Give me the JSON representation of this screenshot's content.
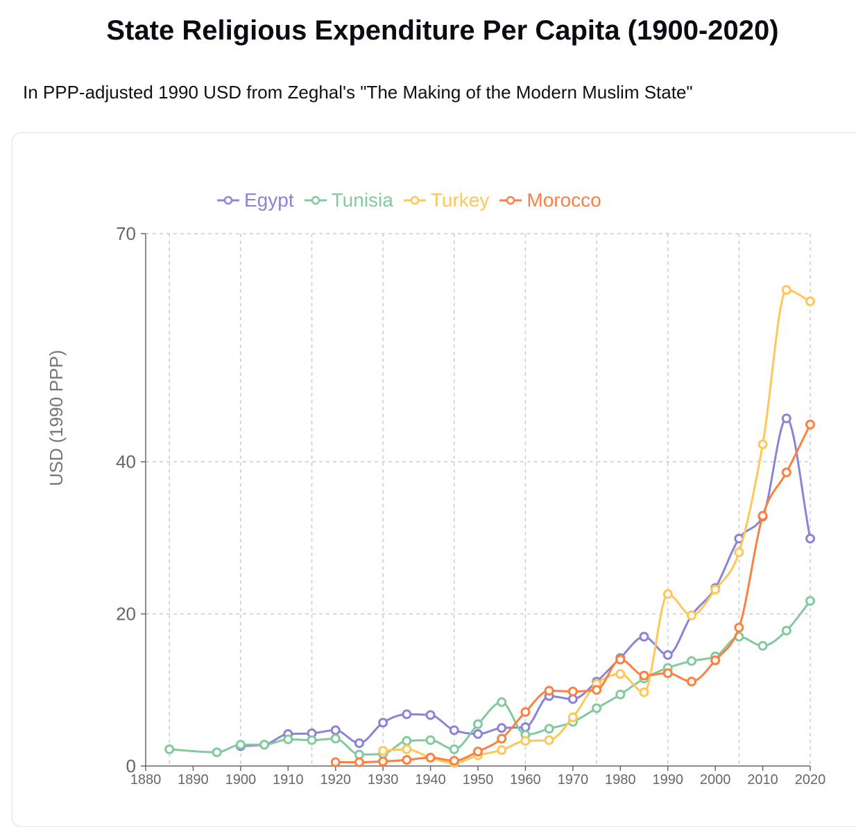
{
  "header": {
    "title": "State Religious Expenditure Per Capita (1900-2020)",
    "subtitle": "In PPP-adjusted 1990 USD from Zeghal's \"The Making of the Modern Muslim State\""
  },
  "chart_data": {
    "type": "line",
    "ylabel": "USD (1990 PPP)",
    "xlabel": "",
    "xlim": [
      1880,
      2020
    ],
    "ylim": [
      0,
      70
    ],
    "xticks": [
      1880,
      1890,
      1900,
      1910,
      1920,
      1930,
      1940,
      1950,
      1960,
      1970,
      1980,
      1990,
      2000,
      2010,
      2020
    ],
    "yticks": [
      0,
      20,
      40,
      70
    ],
    "grid": true,
    "legend_position": "top",
    "series": [
      {
        "name": "Egypt",
        "color": "#8884d8",
        "x": [
          1900,
          1905,
          1910,
          1915,
          1920,
          1925,
          1930,
          1935,
          1940,
          1945,
          1950,
          1955,
          1960,
          1965,
          1970,
          1975,
          1980,
          1985,
          1990,
          1995,
          2000,
          2005,
          2010,
          2015,
          2020
        ],
        "values": [
          2.6,
          2.8,
          4.2,
          4.3,
          4.7,
          3.0,
          5.7,
          6.8,
          6.7,
          4.7,
          4.2,
          5.0,
          5.1,
          9.2,
          8.8,
          11.1,
          14.2,
          17.0,
          14.6,
          19.8,
          23.4,
          29.9,
          32.8,
          45.7,
          29.9
        ]
      },
      {
        "name": "Tunisia",
        "color": "#82ca9d",
        "x": [
          1885,
          1895,
          1900,
          1905,
          1910,
          1915,
          1920,
          1925,
          1930,
          1935,
          1940,
          1945,
          1950,
          1955,
          1960,
          1965,
          1970,
          1975,
          1980,
          1985,
          1990,
          1995,
          2000,
          2005,
          2010,
          2015,
          2020
        ],
        "values": [
          2.2,
          1.8,
          2.8,
          2.8,
          3.5,
          3.4,
          3.6,
          1.5,
          1.6,
          3.3,
          3.4,
          2.2,
          5.5,
          8.4,
          4.1,
          4.9,
          5.8,
          7.6,
          9.4,
          11.5,
          12.9,
          13.8,
          14.4,
          17.0,
          15.8,
          17.8,
          21.7
        ]
      },
      {
        "name": "Turkey",
        "color": "#ffc658",
        "x": [
          1930,
          1935,
          1940,
          1945,
          1950,
          1955,
          1960,
          1965,
          1970,
          1975,
          1980,
          1985,
          1990,
          1995,
          2000,
          2005,
          2010,
          2015,
          2020
        ],
        "values": [
          2.0,
          2.2,
          1.1,
          0.4,
          1.4,
          2.1,
          3.3,
          3.4,
          6.4,
          10.8,
          12.1,
          9.7,
          22.6,
          19.8,
          23.2,
          28.1,
          42.3,
          62.6,
          61.1
        ]
      },
      {
        "name": "Morocco",
        "color": "#ff7f3f",
        "x": [
          1920,
          1925,
          1930,
          1935,
          1940,
          1945,
          1950,
          1955,
          1960,
          1965,
          1970,
          1975,
          1980,
          1985,
          1990,
          1995,
          2000,
          2005,
          2010,
          2015,
          2020
        ],
        "values": [
          0.5,
          0.5,
          0.6,
          0.8,
          1.1,
          0.7,
          1.9,
          3.6,
          7.1,
          9.9,
          9.8,
          10.0,
          14.0,
          11.9,
          12.2,
          11.1,
          13.9,
          18.2,
          32.9,
          38.6,
          44.9
        ]
      }
    ]
  }
}
